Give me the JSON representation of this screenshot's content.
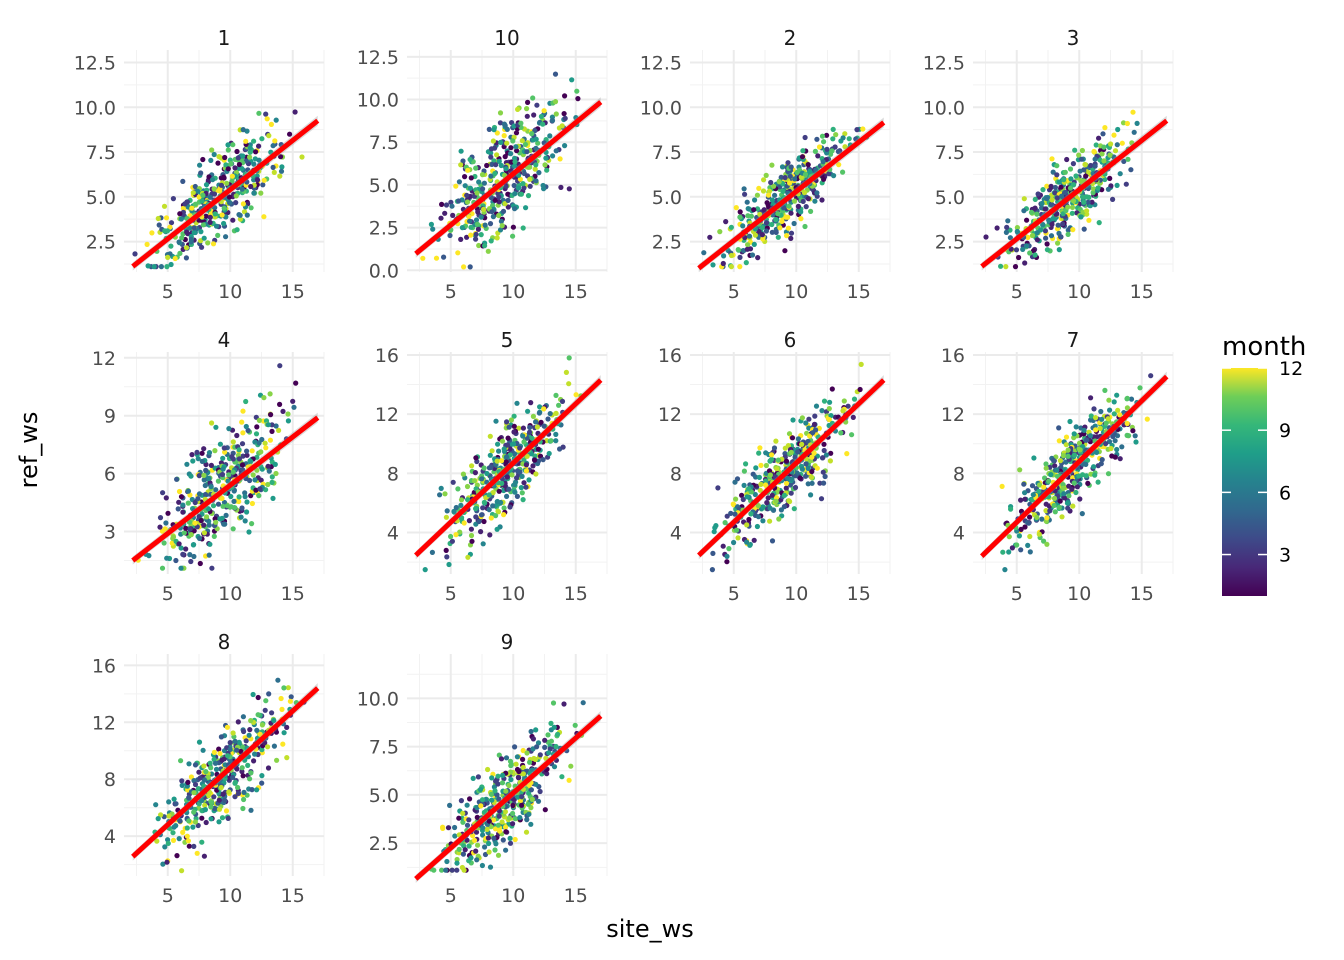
{
  "chart_data": {
    "type": "scatter",
    "facet_by": "month",
    "xlabel": "site_ws",
    "ylabel": "ref_ws",
    "xlim": [
      1.5,
      17.5
    ],
    "x_ticks": [
      5,
      10,
      15
    ],
    "fit_line_color": "#ff0000",
    "colormap": "viridis",
    "legend": {
      "title": "month",
      "position": "right",
      "range": [
        1,
        12
      ],
      "ticks": [
        3,
        6,
        9,
        12
      ]
    },
    "panels": [
      {
        "title": "1",
        "ylim": [
          0.8,
          13.2
        ],
        "y_ticks": [
          2.5,
          5.0,
          7.5,
          10.0,
          12.5
        ],
        "fit": {
          "slope": 0.55,
          "intercept": -0.1
        },
        "scatter": {
          "slope": 0.56,
          "intercept": -0.1,
          "sd": 1.15,
          "seed": 11
        }
      },
      {
        "title": "10",
        "ylim": [
          -0.1,
          12.9
        ],
        "y_ticks": [
          0.0,
          2.5,
          5.0,
          7.5,
          10.0,
          12.5
        ],
        "fit": {
          "slope": 0.6,
          "intercept": -0.35
        },
        "scatter": {
          "slope": 0.62,
          "intercept": -0.3,
          "sd": 1.6,
          "seed": 23
        }
      },
      {
        "title": "2",
        "ylim": [
          0.8,
          13.2
        ],
        "y_ticks": [
          2.5,
          5.0,
          7.5,
          10.0,
          12.5
        ],
        "fit": {
          "slope": 0.55,
          "intercept": -0.2
        },
        "scatter": {
          "slope": 0.55,
          "intercept": -0.15,
          "sd": 1.0,
          "seed": 37
        }
      },
      {
        "title": "3",
        "ylim": [
          0.8,
          13.2
        ],
        "y_ticks": [
          2.5,
          5.0,
          7.5,
          10.0,
          12.5
        ],
        "fit": {
          "slope": 0.55,
          "intercept": -0.1
        },
        "scatter": {
          "slope": 0.55,
          "intercept": -0.1,
          "sd": 1.05,
          "seed": 41
        }
      },
      {
        "title": "4",
        "ylim": [
          0.8,
          12.3
        ],
        "y_ticks": [
          3,
          6,
          9,
          12
        ],
        "fit": {
          "slope": 0.5,
          "intercept": 0.4
        },
        "scatter": {
          "slope": 0.5,
          "intercept": 0.4,
          "sd": 1.5,
          "seed": 53
        }
      },
      {
        "title": "5",
        "ylim": [
          1.2,
          16.2
        ],
        "y_ticks": [
          4,
          8,
          12,
          16
        ],
        "fit": {
          "slope": 0.8,
          "intercept": 0.7
        },
        "scatter": {
          "slope": 0.8,
          "intercept": 0.7,
          "sd": 1.5,
          "seed": 67
        }
      },
      {
        "title": "6",
        "ylim": [
          1.2,
          16.2
        ],
        "y_ticks": [
          4,
          8,
          12,
          16
        ],
        "fit": {
          "slope": 0.8,
          "intercept": 0.7
        },
        "scatter": {
          "slope": 0.8,
          "intercept": 0.7,
          "sd": 1.3,
          "seed": 71
        }
      },
      {
        "title": "7",
        "ylim": [
          1.2,
          16.2
        ],
        "y_ticks": [
          4,
          8,
          12,
          16
        ],
        "fit": {
          "slope": 0.82,
          "intercept": 0.6
        },
        "scatter": {
          "slope": 0.82,
          "intercept": 0.6,
          "sd": 1.4,
          "seed": 83
        }
      },
      {
        "title": "8",
        "ylim": [
          1.2,
          16.8
        ],
        "y_ticks": [
          4,
          8,
          12,
          16
        ],
        "fit": {
          "slope": 0.8,
          "intercept": 0.8
        },
        "scatter": {
          "slope": 0.8,
          "intercept": 0.8,
          "sd": 1.5,
          "seed": 97
        }
      },
      {
        "title": "9",
        "ylim": [
          0.8,
          12.3
        ],
        "y_ticks": [
          2.5,
          5.0,
          7.5,
          10.0
        ],
        "fit": {
          "slope": 0.57,
          "intercept": -0.6
        },
        "scatter": {
          "slope": 0.57,
          "intercept": -0.6,
          "sd": 1.1,
          "seed": 101
        }
      }
    ]
  }
}
